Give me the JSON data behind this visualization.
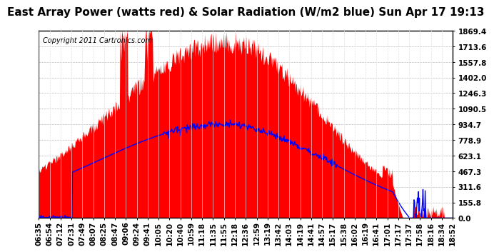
{
  "title": "East Array Power (watts red) & Solar Radiation (W/m2 blue) Sun Apr 17 19:13",
  "copyright_text": "Copyright 2011 Cartronics.com",
  "yticks": [
    0.0,
    155.8,
    311.6,
    467.3,
    623.1,
    778.9,
    934.7,
    1090.5,
    1246.3,
    1402.0,
    1557.8,
    1713.6,
    1869.4
  ],
  "ymax": 1869.4,
  "xtick_labels": [
    "06:35",
    "06:54",
    "07:12",
    "07:31",
    "07:49",
    "08:07",
    "08:25",
    "08:47",
    "09:06",
    "09:24",
    "09:41",
    "10:05",
    "10:20",
    "10:40",
    "10:59",
    "11:18",
    "11:35",
    "11:55",
    "12:18",
    "12:36",
    "12:59",
    "13:19",
    "13:42",
    "14:03",
    "14:19",
    "14:41",
    "14:57",
    "15:17",
    "15:38",
    "16:02",
    "16:19",
    "16:41",
    "17:01",
    "17:17",
    "17:37",
    "17:58",
    "18:16",
    "18:34",
    "18:52"
  ],
  "bg_color": "#ffffff",
  "plot_bg_color": "#ffffff",
  "grid_color": "#bbbbbb",
  "red_color": "#ff0000",
  "blue_color": "#0000ff",
  "title_fontsize": 11,
  "tick_fontsize": 7.5,
  "copyright_fontsize": 7
}
